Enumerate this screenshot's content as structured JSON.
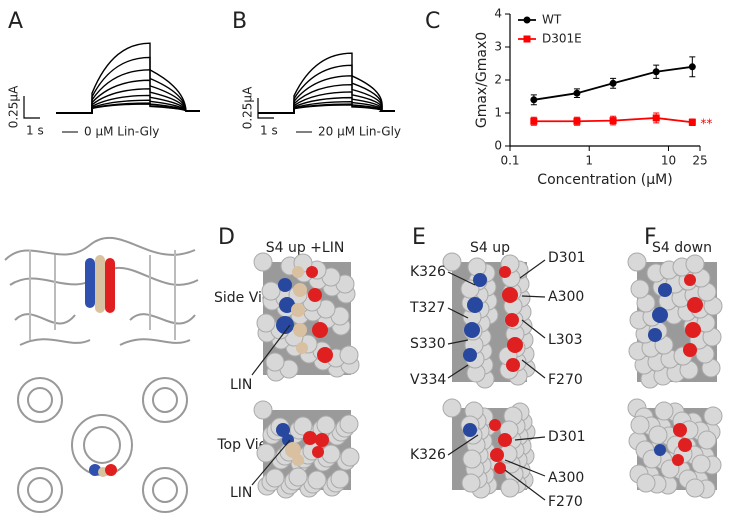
{
  "panels": {
    "a": {
      "label": "A",
      "scale_y": "0.25µA",
      "scale_x": "1 s",
      "legend": "0 µM Lin-Gly"
    },
    "b": {
      "label": "B",
      "scale_y": "0.25µA",
      "scale_x": "1 s",
      "legend": "20 µM Lin-Gly"
    },
    "c": {
      "label": "C"
    },
    "d": {
      "label": "D",
      "title": "S4 up +LIN",
      "row_labels": [
        "Side View",
        "Top View"
      ],
      "side_labels": [
        "LIN"
      ],
      "top_labels": [
        "LIN"
      ]
    },
    "e": {
      "label": "E",
      "title": "S4 up",
      "side_left": [
        "K326",
        "T327",
        "S330",
        "V334"
      ],
      "side_right": [
        "D301",
        "A300",
        "L303",
        "F270"
      ],
      "top_left": [
        "K326"
      ],
      "top_right": [
        "D301",
        "A300",
        "F270"
      ]
    },
    "f": {
      "label": "F",
      "title": "S4 down"
    }
  },
  "chart_data": {
    "type": "line",
    "xscale": "log",
    "x_label": "Concentration (µM)",
    "y_label": "Gmax/Gmax0",
    "x": [
      0.2,
      0.7,
      2,
      7,
      20
    ],
    "series": [
      {
        "name": "WT",
        "color": "#000000",
        "marker": "circle",
        "values": [
          1.4,
          1.6,
          1.9,
          2.25,
          2.4
        ],
        "errors": [
          0.15,
          0.13,
          0.15,
          0.2,
          0.3
        ]
      },
      {
        "name": "D301E",
        "color": "#ff0000",
        "marker": "square",
        "values": [
          0.75,
          0.75,
          0.77,
          0.85,
          0.72
        ],
        "errors": [
          0.12,
          0.12,
          0.13,
          0.15,
          0.1
        ]
      }
    ],
    "annotation": "**",
    "xlim": [
      0.1,
      25
    ],
    "xticks": [
      0.1,
      1,
      10,
      25
    ],
    "ylim": [
      0,
      4
    ],
    "yticks": [
      0,
      1,
      2,
      3,
      4
    ],
    "legend": "upper left"
  }
}
